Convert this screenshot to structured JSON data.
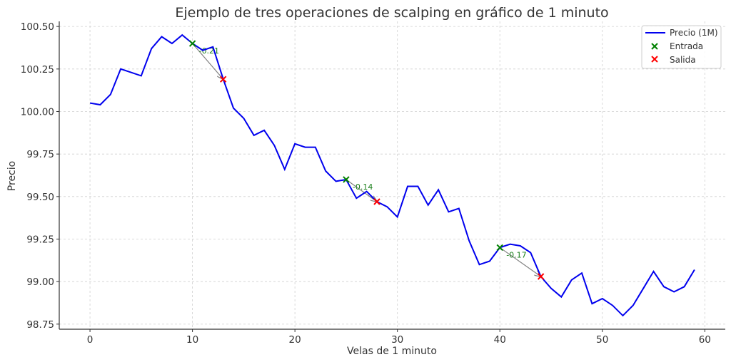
{
  "chart_data": {
    "type": "line",
    "title": "Ejemplo de tres operaciones de scalping en gráfico de 1 minuto",
    "xlabel": "Velas de 1 minuto",
    "ylabel": "Precio",
    "xlim": [
      -3,
      62
    ],
    "ylim": [
      98.72,
      100.53
    ],
    "xticks": [
      0,
      10,
      20,
      30,
      40,
      50,
      60
    ],
    "yticks": [
      98.75,
      99.0,
      99.25,
      99.5,
      99.75,
      100.0,
      100.25,
      100.5
    ],
    "ytick_labels": [
      "98.75",
      "99.00",
      "99.25",
      "99.50",
      "99.75",
      "100.00",
      "100.25",
      "100.50"
    ],
    "grid": true,
    "legend_position": "upper right",
    "series": [
      {
        "name": "Precio (1M)",
        "color": "#0000ee",
        "x": [
          0,
          1,
          2,
          3,
          4,
          5,
          6,
          7,
          8,
          9,
          10,
          11,
          12,
          13,
          14,
          15,
          16,
          17,
          18,
          19,
          20,
          21,
          22,
          23,
          24,
          25,
          26,
          27,
          28,
          29,
          30,
          31,
          32,
          33,
          34,
          35,
          36,
          37,
          38,
          39,
          40,
          41,
          42,
          43,
          44,
          45,
          46,
          47,
          48,
          49,
          50,
          51,
          52,
          53,
          54,
          55,
          56,
          57,
          58,
          59
        ],
        "values": [
          100.05,
          100.04,
          100.1,
          100.25,
          100.23,
          100.21,
          100.37,
          100.44,
          100.4,
          100.45,
          100.4,
          100.36,
          100.38,
          100.19,
          100.02,
          99.96,
          99.86,
          99.89,
          99.8,
          99.66,
          99.81,
          99.79,
          99.79,
          99.65,
          99.59,
          99.6,
          99.49,
          99.53,
          99.47,
          99.44,
          99.38,
          99.56,
          99.56,
          99.45,
          99.54,
          99.41,
          99.43,
          99.24,
          99.1,
          99.12,
          99.2,
          99.22,
          99.21,
          99.17,
          99.03,
          98.96,
          98.91,
          99.01,
          99.05,
          98.87,
          98.9,
          98.86,
          98.8,
          98.86,
          98.96,
          99.06,
          98.97,
          98.94,
          98.97,
          99.07
        ]
      }
    ],
    "markers": {
      "entries": {
        "name": "Entrada",
        "color": "#008000",
        "points": [
          [
            10,
            100.4
          ],
          [
            25,
            99.6
          ],
          [
            40,
            99.2
          ]
        ]
      },
      "exits": {
        "name": "Salida",
        "color": "#ff0000",
        "points": [
          [
            13,
            100.19
          ],
          [
            28,
            99.47
          ],
          [
            44,
            99.03
          ]
        ]
      }
    },
    "annotations": [
      {
        "text": "-0.21",
        "from": [
          10,
          100.4
        ],
        "to": [
          13,
          100.19
        ]
      },
      {
        "text": "-0.14",
        "from": [
          25,
          99.6
        ],
        "to": [
          28,
          99.47
        ]
      },
      {
        "text": "-0.17",
        "from": [
          40,
          99.2
        ],
        "to": [
          44,
          99.03
        ]
      }
    ],
    "legend": [
      "Precio (1M)",
      "Entrada",
      "Salida"
    ]
  }
}
